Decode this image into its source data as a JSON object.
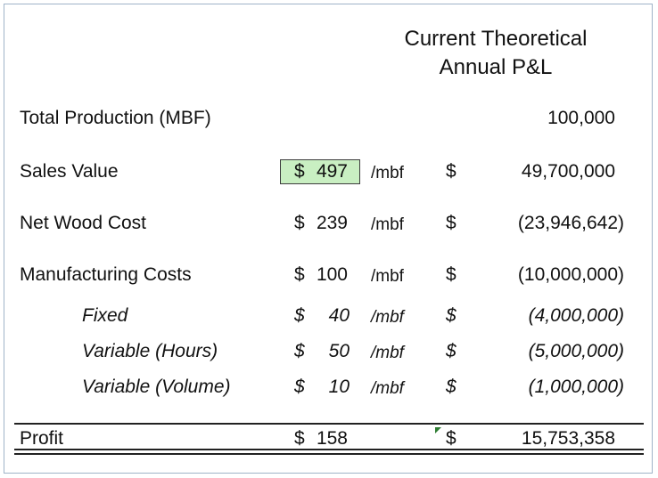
{
  "header": {
    "title_line1": "Current Theoretical",
    "title_line2": "Annual P&L"
  },
  "rows": {
    "total_production": {
      "label": "Total Production (MBF)",
      "value": "100,000"
    },
    "sales_value": {
      "label": "Sales Value",
      "dollar": "$",
      "rate": "497",
      "unit": "/mbf",
      "cur": "$",
      "value": "49,700,000"
    },
    "net_wood_cost": {
      "label": "Net Wood Cost",
      "dollar": "$",
      "rate": "239",
      "unit": "/mbf",
      "cur": "$",
      "value": "(23,946,642)"
    },
    "manufacturing_costs": {
      "label": "Manufacturing Costs",
      "dollar": "$",
      "rate": "100",
      "unit": "/mbf",
      "cur": "$",
      "value": "(10,000,000)"
    },
    "fixed": {
      "label": "Fixed",
      "dollar": "$",
      "rate": "40",
      "unit": "/mbf",
      "cur": "$",
      "value": "(4,000,000)"
    },
    "variable_hours": {
      "label": "Variable (Hours)",
      "dollar": "$",
      "rate": "50",
      "unit": "/mbf",
      "cur": "$",
      "value": "(5,000,000)"
    },
    "variable_volume": {
      "label": "Variable (Volume)",
      "dollar": "$",
      "rate": "10",
      "unit": "/mbf",
      "cur": "$",
      "value": "(1,000,000)"
    },
    "profit": {
      "label": "Profit",
      "dollar": "$",
      "rate": "158",
      "cur": "$",
      "value": "15,753,358"
    }
  },
  "colors": {
    "highlight": "#c9efc2",
    "border": "#9fb3c8"
  }
}
